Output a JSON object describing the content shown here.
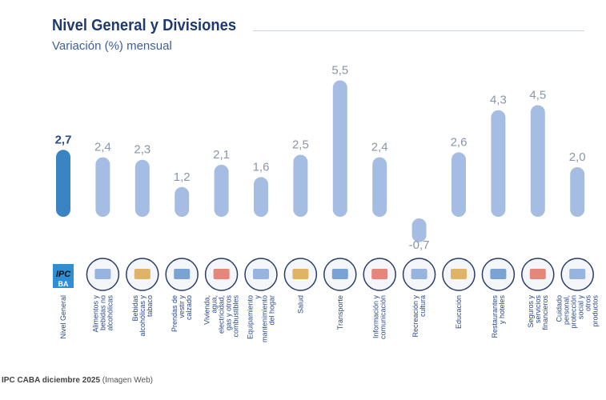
{
  "header": {
    "title": "Nivel General y Divisiones",
    "subtitle": "Variación (%) mensual"
  },
  "footer": {
    "source": "IPC CABA diciembre 2025",
    "note": "(Imagen Web)"
  },
  "colors": {
    "highlight": "#3b84c4",
    "bar": "#a5bde3",
    "label": "#8a96a8",
    "text": "#2b4a8a"
  },
  "chart_data": {
    "type": "bar",
    "title": "Nivel General y Divisiones",
    "subtitle": "Variación (%) mensual",
    "categories": [
      "Nivel General",
      "Alimentos y bebidas no alcohólicas",
      "Bebidas alcohólicas y tabaco",
      "Prendas de vestir y calzado",
      "Vivienda, agua, electricidad, gas y otros combustibles",
      "Equipamiento y mantenimiento del hogar",
      "Salud",
      "Transporte",
      "Información y comunicación",
      "Recreación y cultura",
      "Educación",
      "Restaurantes y hoteles",
      "Seguros y servicios financieros",
      "Cuidado personal, protección social y otros productos"
    ],
    "values": [
      2.7,
      2.4,
      2.3,
      1.2,
      2.1,
      1.6,
      2.5,
      5.5,
      2.4,
      -0.7,
      2.6,
      4.3,
      4.5,
      2.0
    ],
    "value_labels": [
      "2,7",
      "2,4",
      "2,3",
      "1,2",
      "2,1",
      "1,6",
      "2,5",
      "5,5",
      "2,4",
      "-0,7",
      "2,6",
      "4,3",
      "4,5",
      "2,0"
    ],
    "icons": [
      "ipc-ba-logo-icon",
      "food-icon",
      "alcohol-tobacco-icon",
      "clothing-icon",
      "housing-icon",
      "appliance-icon",
      "health-icon",
      "transport-icon",
      "computer-icon",
      "recreation-icon",
      "school-icon",
      "restaurant-icon",
      "bank-icon",
      "personal-care-icon"
    ],
    "grid": false,
    "xlabel": "",
    "ylabel": ""
  }
}
